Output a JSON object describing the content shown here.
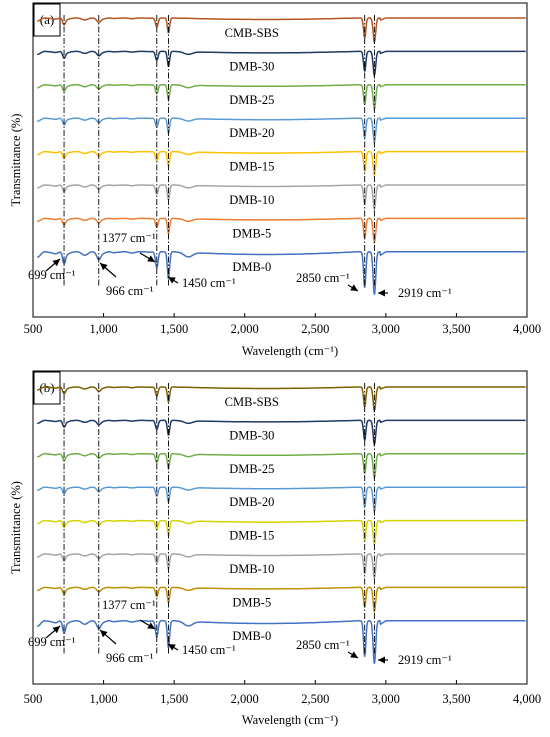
{
  "chart_data": [
    {
      "type": "line",
      "panel_label": "(a)",
      "xlabel": "Wavelength (cm⁻¹)",
      "ylabel": "Transmittance (%)",
      "xlim": [
        500,
        4000
      ],
      "x_ticks": [
        500,
        1000,
        1500,
        2000,
        2500,
        3000,
        3500,
        4000
      ],
      "x_tick_labels": [
        "500",
        "1,000",
        "1,500",
        "2,000",
        "2,500",
        "3,000",
        "3,500",
        "4,000"
      ],
      "grid": false,
      "legend": "inline labels",
      "series": [
        {
          "name": "CMB-SBS",
          "color": "#b5541f"
        },
        {
          "name": "DMB-30",
          "color": "#203864"
        },
        {
          "name": "DMB-25",
          "color": "#70ad47"
        },
        {
          "name": "DMB-20",
          "color": "#5b9bd5"
        },
        {
          "name": "DMB-15",
          "color": "#ffc000"
        },
        {
          "name": "DMB-10",
          "color": "#a5a5a5"
        },
        {
          "name": "DMB-5",
          "color": "#ed7d31"
        },
        {
          "name": "DMB-0",
          "color": "#4472c4"
        }
      ],
      "reference_lines_x": [
        720,
        966,
        1377,
        1460,
        2850,
        2919
      ],
      "annotations": [
        {
          "text": "699 cm⁻¹",
          "x": 699
        },
        {
          "text": "966 cm⁻¹",
          "x": 966
        },
        {
          "text": "1377 cm⁻¹",
          "x": 1377
        },
        {
          "text": "1450 cm⁻¹",
          "x": 1450
        },
        {
          "text": "2850 cm⁻¹",
          "x": 2850
        },
        {
          "text": "2919 cm⁻¹",
          "x": 2919
        }
      ]
    },
    {
      "type": "line",
      "panel_label": "(b)",
      "xlabel": "Wavelength (cm⁻¹)",
      "ylabel": "Transmittance (%)",
      "xlim": [
        500,
        4000
      ],
      "x_ticks": [
        500,
        1000,
        1500,
        2000,
        2500,
        3000,
        3500,
        4000
      ],
      "x_tick_labels": [
        "500",
        "1,000",
        "1,500",
        "2,000",
        "2,500",
        "3,000",
        "3,500",
        "4,000"
      ],
      "grid": false,
      "legend": "inline labels",
      "series": [
        {
          "name": "CMB-SBS",
          "color": "#7f6000"
        },
        {
          "name": "DMB-30",
          "color": "#203864"
        },
        {
          "name": "DMB-25",
          "color": "#70ad47"
        },
        {
          "name": "DMB-20",
          "color": "#5b9bd5"
        },
        {
          "name": "DMB-15",
          "color": "#d4d400"
        },
        {
          "name": "DMB-10",
          "color": "#a5a5a5"
        },
        {
          "name": "DMB-5",
          "color": "#bf9000"
        },
        {
          "name": "DMB-0",
          "color": "#4472c4"
        }
      ],
      "reference_lines_x": [
        720,
        966,
        1377,
        1460,
        2850,
        2919
      ],
      "annotations": [
        {
          "text": "699 cm⁻¹",
          "x": 699
        },
        {
          "text": "966 cm⁻¹",
          "x": 966
        },
        {
          "text": "1377 cm⁻¹",
          "x": 1377
        },
        {
          "text": "1450 cm⁻¹",
          "x": 1450
        },
        {
          "text": "2850 cm⁻¹",
          "x": 2850
        },
        {
          "text": "2919 cm⁻¹",
          "x": 2919
        }
      ]
    }
  ]
}
